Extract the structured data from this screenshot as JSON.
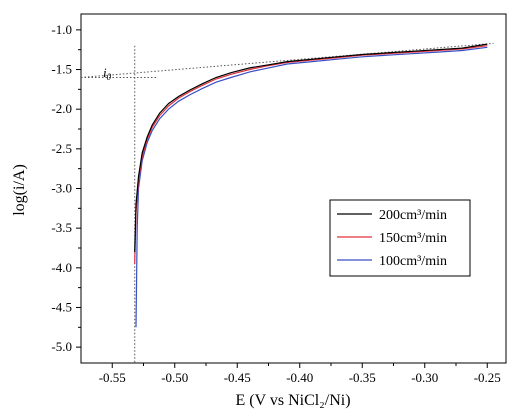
{
  "chart_data": {
    "type": "line",
    "xlabel": "E (V vs NiCl₂/Ni)",
    "ylabel": "log(i/A)",
    "xlim": [
      -0.575,
      -0.235
    ],
    "ylim": [
      -5.2,
      -0.8
    ],
    "x_ticks": [
      "-0.55",
      "-0.50",
      "-0.45",
      "-0.40",
      "-0.35",
      "-0.30",
      "-0.25"
    ],
    "y_ticks": [
      "-1.0",
      "-1.5",
      "-2.0",
      "-2.5",
      "-3.0",
      "-3.5",
      "-4.0",
      "-4.5",
      "-5.0"
    ],
    "grid": false,
    "legend_position": "bottom-right",
    "series": [
      {
        "name": "200cm³/min",
        "color": "#000000",
        "points": [
          [
            -0.532,
            -3.8
          ],
          [
            -0.531,
            -3.2
          ],
          [
            -0.529,
            -2.85
          ],
          [
            -0.526,
            -2.55
          ],
          [
            -0.522,
            -2.35
          ],
          [
            -0.518,
            -2.2
          ],
          [
            -0.512,
            -2.05
          ],
          [
            -0.505,
            -1.93
          ],
          [
            -0.497,
            -1.84
          ],
          [
            -0.488,
            -1.76
          ],
          [
            -0.478,
            -1.68
          ],
          [
            -0.467,
            -1.6
          ],
          [
            -0.455,
            -1.54
          ],
          [
            -0.44,
            -1.48
          ],
          [
            -0.425,
            -1.44
          ],
          [
            -0.41,
            -1.4
          ],
          [
            -0.39,
            -1.37
          ],
          [
            -0.37,
            -1.34
          ],
          [
            -0.35,
            -1.31
          ],
          [
            -0.33,
            -1.29
          ],
          [
            -0.31,
            -1.27
          ],
          [
            -0.29,
            -1.25
          ],
          [
            -0.27,
            -1.23
          ],
          [
            -0.25,
            -1.18
          ]
        ]
      },
      {
        "name": "150cm³/min",
        "color": "#e0303a",
        "points": [
          [
            -0.532,
            -3.95
          ],
          [
            -0.531,
            -3.3
          ],
          [
            -0.529,
            -2.9
          ],
          [
            -0.526,
            -2.6
          ],
          [
            -0.522,
            -2.38
          ],
          [
            -0.518,
            -2.23
          ],
          [
            -0.512,
            -2.08
          ],
          [
            -0.505,
            -1.96
          ],
          [
            -0.497,
            -1.86
          ],
          [
            -0.488,
            -1.78
          ],
          [
            -0.478,
            -1.7
          ],
          [
            -0.467,
            -1.62
          ],
          [
            -0.455,
            -1.56
          ],
          [
            -0.44,
            -1.5
          ],
          [
            -0.425,
            -1.45
          ],
          [
            -0.41,
            -1.41
          ],
          [
            -0.39,
            -1.38
          ],
          [
            -0.37,
            -1.35
          ],
          [
            -0.35,
            -1.32
          ],
          [
            -0.33,
            -1.3
          ],
          [
            -0.31,
            -1.28
          ],
          [
            -0.29,
            -1.26
          ],
          [
            -0.27,
            -1.24
          ],
          [
            -0.25,
            -1.2
          ]
        ]
      },
      {
        "name": "100cm³/min",
        "color": "#3b4fc4",
        "points": [
          [
            -0.531,
            -4.75
          ],
          [
            -0.53,
            -3.5
          ],
          [
            -0.529,
            -3.0
          ],
          [
            -0.526,
            -2.65
          ],
          [
            -0.522,
            -2.42
          ],
          [
            -0.518,
            -2.27
          ],
          [
            -0.512,
            -2.12
          ],
          [
            -0.505,
            -2.0
          ],
          [
            -0.497,
            -1.9
          ],
          [
            -0.488,
            -1.82
          ],
          [
            -0.478,
            -1.74
          ],
          [
            -0.467,
            -1.66
          ],
          [
            -0.455,
            -1.6
          ],
          [
            -0.44,
            -1.53
          ],
          [
            -0.425,
            -1.48
          ],
          [
            -0.41,
            -1.43
          ],
          [
            -0.39,
            -1.4
          ],
          [
            -0.37,
            -1.37
          ],
          [
            -0.35,
            -1.34
          ],
          [
            -0.33,
            -1.32
          ],
          [
            -0.31,
            -1.3
          ],
          [
            -0.29,
            -1.28
          ],
          [
            -0.27,
            -1.26
          ],
          [
            -0.25,
            -1.22
          ]
        ]
      }
    ],
    "annotations": {
      "i0_label": "i",
      "i0_subscript": "0",
      "tangent_line": [
        [
          -0.575,
          -1.6
        ],
        [
          -0.245,
          -1.17
        ]
      ],
      "vertical_line_x": -0.532,
      "horizontal_line_y": -1.6
    }
  }
}
